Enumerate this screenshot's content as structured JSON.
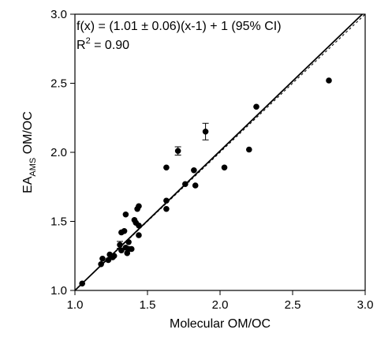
{
  "chart_data": {
    "type": "scatter",
    "xlabel": "Molecular OM/OC",
    "ylabel": {
      "main": "EA",
      "subscript": "AMS",
      "rest": " OM/OC"
    },
    "xlim": [
      1.0,
      3.0
    ],
    "ylim": [
      1.0,
      3.0
    ],
    "x_ticks": [
      "1.0",
      "1.5",
      "2.0",
      "2.5",
      "3.0"
    ],
    "y_ticks": [
      "1.0",
      "1.5",
      "2.0",
      "2.5",
      "3.0"
    ],
    "grid": false,
    "fit_equation": "f(x) = (1.01 ± 0.06)(x-1) + 1 (95% CI)",
    "r_squared": {
      "prefix": "R",
      "superscript": "2",
      "value": " = 0.90"
    },
    "fit_line": {
      "slope": 1.01,
      "intercept_at_x1": 1.0,
      "style": "solid"
    },
    "reference_line": {
      "slope": 1.0,
      "style": "dashed"
    },
    "points": [
      {
        "x": 1.05,
        "y": 1.05
      },
      {
        "x": 1.18,
        "y": 1.19
      },
      {
        "x": 1.19,
        "y": 1.23
      },
      {
        "x": 1.23,
        "y": 1.22
      },
      {
        "x": 1.24,
        "y": 1.26
      },
      {
        "x": 1.26,
        "y": 1.24
      },
      {
        "x": 1.27,
        "y": 1.25
      },
      {
        "x": 1.31,
        "y": 1.33,
        "err": 0.025
      },
      {
        "x": 1.32,
        "y": 1.29
      },
      {
        "x": 1.32,
        "y": 1.42
      },
      {
        "x": 1.34,
        "y": 1.43
      },
      {
        "x": 1.35,
        "y": 1.31
      },
      {
        "x": 1.35,
        "y": 1.55
      },
      {
        "x": 1.36,
        "y": 1.27
      },
      {
        "x": 1.37,
        "y": 1.3
      },
      {
        "x": 1.37,
        "y": 1.35
      },
      {
        "x": 1.39,
        "y": 1.3
      },
      {
        "x": 1.41,
        "y": 1.51
      },
      {
        "x": 1.42,
        "y": 1.49
      },
      {
        "x": 1.43,
        "y": 1.59
      },
      {
        "x": 1.44,
        "y": 1.61
      },
      {
        "x": 1.44,
        "y": 1.4
      },
      {
        "x": 1.44,
        "y": 1.47
      },
      {
        "x": 1.63,
        "y": 1.89
      },
      {
        "x": 1.63,
        "y": 1.65
      },
      {
        "x": 1.63,
        "y": 1.59
      },
      {
        "x": 1.71,
        "y": 2.01,
        "err": 0.03
      },
      {
        "x": 1.76,
        "y": 1.77
      },
      {
        "x": 1.82,
        "y": 1.87
      },
      {
        "x": 1.83,
        "y": 1.76
      },
      {
        "x": 1.9,
        "y": 2.15,
        "err": 0.06
      },
      {
        "x": 2.03,
        "y": 1.89
      },
      {
        "x": 2.2,
        "y": 2.02
      },
      {
        "x": 2.25,
        "y": 2.33
      },
      {
        "x": 2.75,
        "y": 2.52
      }
    ]
  }
}
